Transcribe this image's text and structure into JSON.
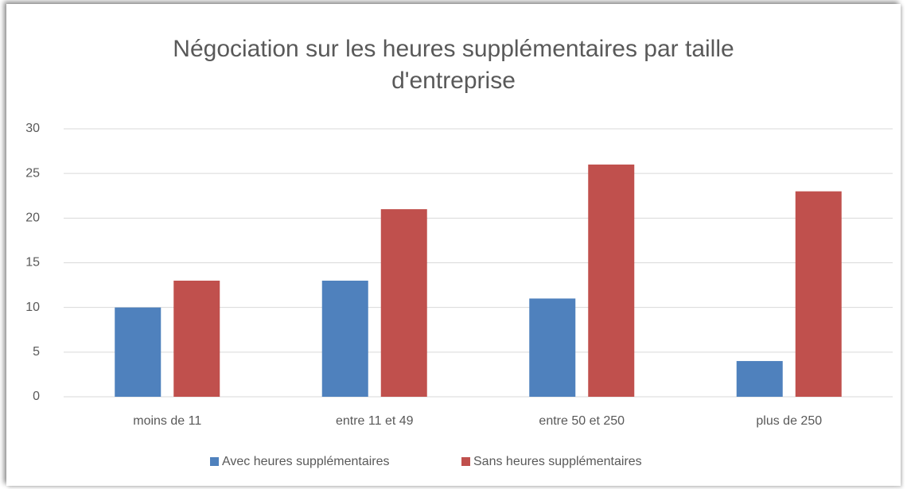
{
  "chart_data": {
    "type": "bar",
    "title": "Négociation sur les heures supplémentaires par taille d'entreprise",
    "categories": [
      "moins de 11",
      "entre 11 et 49",
      "entre 50 et 250",
      "plus de 250"
    ],
    "series": [
      {
        "name": "Avec heures supplémentaires",
        "color": "#4f81bd",
        "values": [
          10,
          13,
          11,
          4
        ]
      },
      {
        "name": "Sans heures supplémentaires",
        "color": "#c0504d",
        "values": [
          13,
          21,
          26,
          23
        ]
      }
    ],
    "ylim": [
      0,
      30
    ],
    "yticks": [
      0,
      5,
      10,
      15,
      20,
      25,
      30
    ],
    "grid": true,
    "legend": "bottom"
  }
}
